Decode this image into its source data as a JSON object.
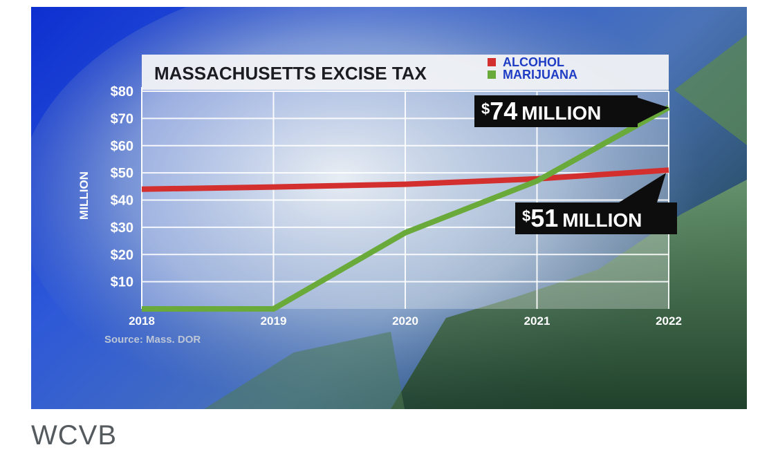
{
  "chart_data": {
    "type": "line",
    "title": "MASSACHUSETTS EXCISE TAX",
    "ylabel": "MILLION",
    "xlabel": "",
    "x": [
      "2018",
      "2019",
      "2020",
      "2021",
      "2022"
    ],
    "ylim": [
      0,
      80
    ],
    "yticks": [
      "$10",
      "$20",
      "$30",
      "$40",
      "$50",
      "$60",
      "$70",
      "$80"
    ],
    "grid": true,
    "legend_position": "top-right",
    "series": [
      {
        "name": "ALCOHOL",
        "color": "#d32f2f",
        "values": [
          44,
          44.8,
          45.8,
          47.8,
          51
        ]
      },
      {
        "name": "MARIJUANA",
        "color": "#6aaa3a",
        "values": [
          0,
          0,
          28,
          47,
          74
        ]
      }
    ],
    "annotations": [
      {
        "prefix": "$",
        "number": "74",
        "unit": "MILLION",
        "series": "MARIJUANA",
        "x": "2022"
      },
      {
        "prefix": "$",
        "number": "51",
        "unit": "MILLION",
        "series": "ALCOHOL",
        "x": "2022"
      }
    ],
    "source": "Source: Mass. DOR"
  },
  "credit": "WCVB"
}
